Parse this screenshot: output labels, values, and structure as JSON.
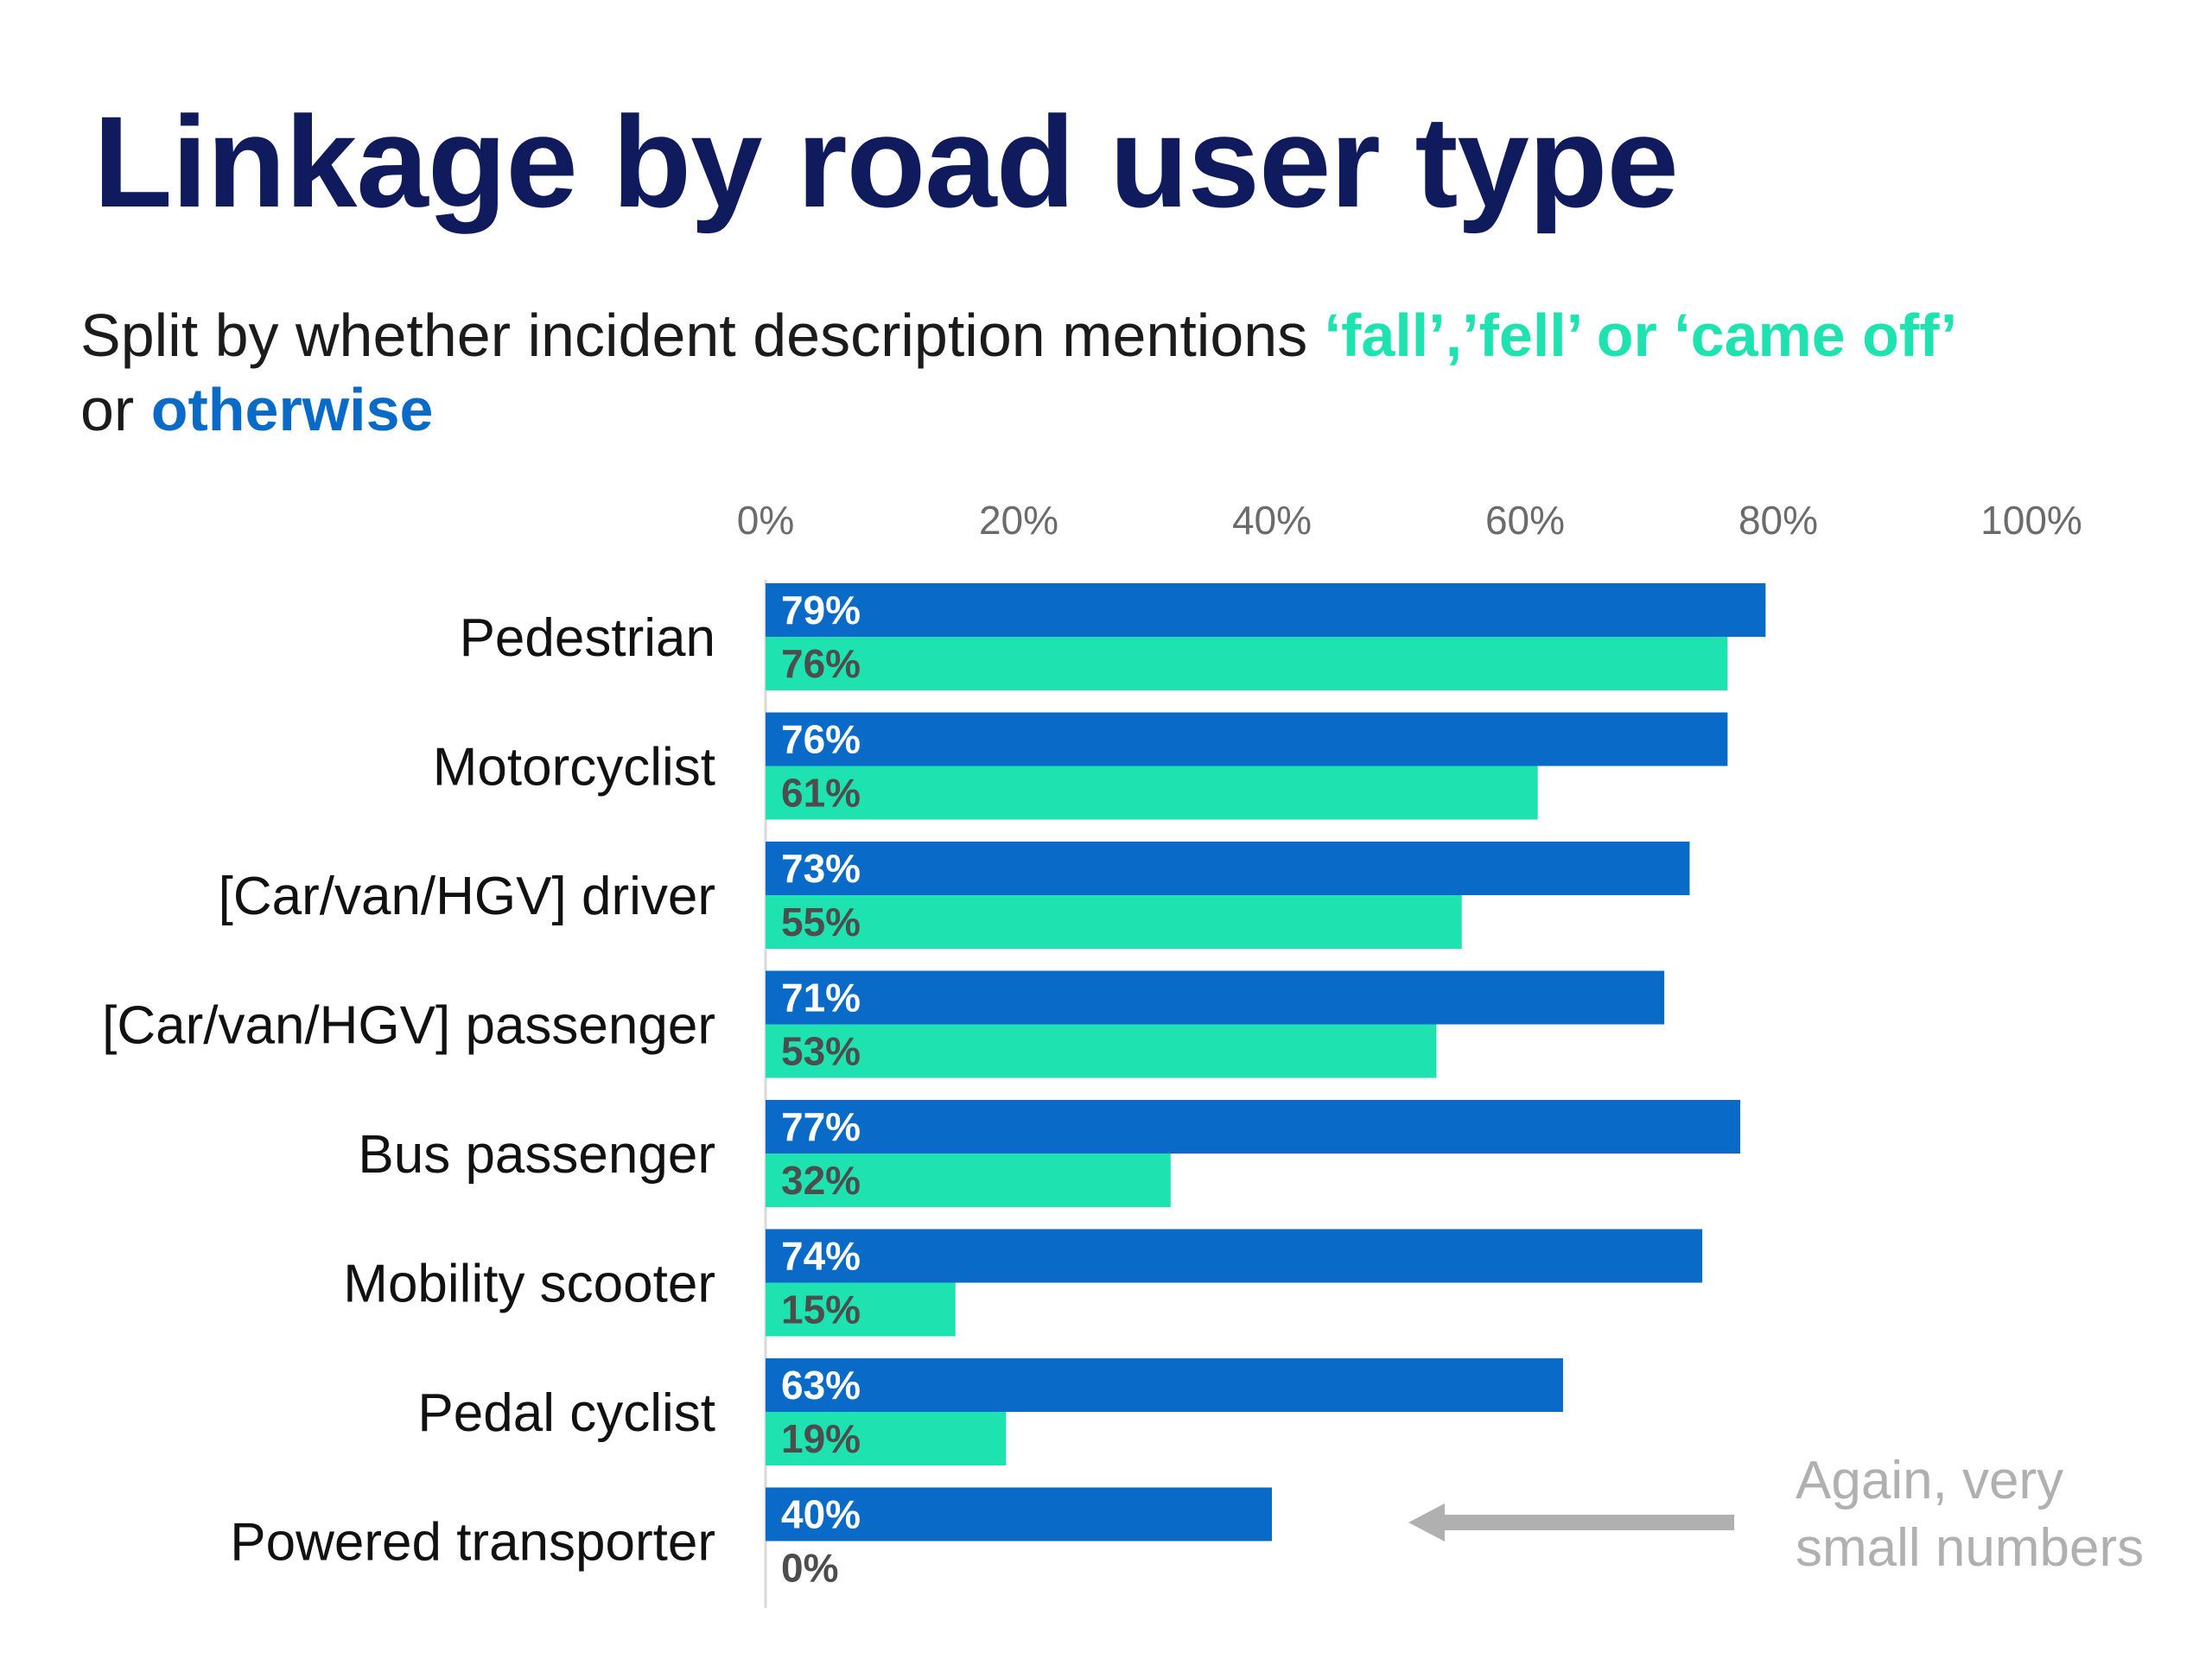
{
  "colors": {
    "title": "#0f1b5c",
    "otherwise": "#0a6ac8",
    "fall": "#1ee3b0",
    "annotation": "#b0b0b0"
  },
  "title": "Linkage by road user type",
  "subtitle": {
    "part1": "Split by whether incident description mentions ",
    "highlight_fall": "‘fall’,’fell’ or ‘came off’",
    "part2": " or ",
    "highlight_otherwise": "otherwise"
  },
  "annotation": {
    "line1": "Again, very",
    "line2": "small numbers",
    "arrow": "left-arrow"
  },
  "chart_data": {
    "type": "bar",
    "orientation": "horizontal",
    "xlim": [
      0,
      100
    ],
    "x_ticks": [
      "0%",
      "20%",
      "40%",
      "60%",
      "80%",
      "100%"
    ],
    "x_tick_position": "top",
    "grid": false,
    "categories": [
      "Pedestrian",
      "Motorcyclist",
      "[Car/van/HGV] driver",
      "[Car/van/HGV] passenger",
      "Bus passenger",
      "Mobility scooter",
      "Pedal cyclist",
      "Powered transporter"
    ],
    "series": [
      {
        "color": "#0a6ac8",
        "label_color": "#ffffff",
        "values": [
          79,
          76,
          73,
          71,
          77,
          74,
          63,
          40
        ],
        "labels": [
          "79%",
          "76%",
          "73%",
          "71%",
          "77%",
          "74%",
          "63%",
          "40%"
        ]
      },
      {
        "color": "#1ee3b0",
        "label_color": "#4d4d4d",
        "values": [
          76,
          61,
          55,
          53,
          32,
          15,
          19,
          0
        ],
        "labels": [
          "76%",
          "61%",
          "55%",
          "53%",
          "32%",
          "15%",
          "19%",
          "0%"
        ]
      }
    ]
  }
}
